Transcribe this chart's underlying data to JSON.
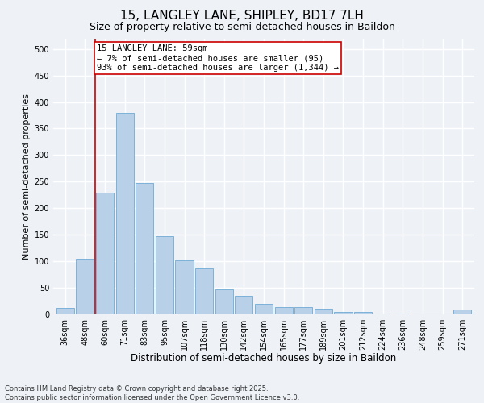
{
  "title": "15, LANGLEY LANE, SHIPLEY, BD17 7LH",
  "subtitle": "Size of property relative to semi-detached houses in Baildon",
  "xlabel": "Distribution of semi-detached houses by size in Baildon",
  "ylabel": "Number of semi-detached properties",
  "categories": [
    "36sqm",
    "48sqm",
    "60sqm",
    "71sqm",
    "83sqm",
    "95sqm",
    "107sqm",
    "118sqm",
    "130sqm",
    "142sqm",
    "154sqm",
    "165sqm",
    "177sqm",
    "189sqm",
    "201sqm",
    "212sqm",
    "224sqm",
    "236sqm",
    "248sqm",
    "259sqm",
    "271sqm"
  ],
  "values": [
    12,
    105,
    230,
    380,
    248,
    148,
    102,
    87,
    47,
    35,
    20,
    14,
    13,
    11,
    5,
    4,
    2,
    1,
    0,
    0,
    9
  ],
  "bar_color": "#b8d0e8",
  "bar_edge_color": "#5a9ecf",
  "property_line_color": "#cc0000",
  "annotation_text": "15 LANGLEY LANE: 59sqm\n← 7% of semi-detached houses are smaller (95)\n93% of semi-detached houses are larger (1,344) →",
  "annotation_box_color": "#cc0000",
  "ylim": [
    0,
    520
  ],
  "yticks": [
    0,
    50,
    100,
    150,
    200,
    250,
    300,
    350,
    400,
    450,
    500
  ],
  "background_color": "#eef2f7",
  "grid_color": "#ffffff",
  "footer_text": "Contains HM Land Registry data © Crown copyright and database right 2025.\nContains public sector information licensed under the Open Government Licence v3.0.",
  "title_fontsize": 11,
  "subtitle_fontsize": 9,
  "xlabel_fontsize": 8.5,
  "ylabel_fontsize": 8,
  "tick_fontsize": 7,
  "annotation_fontsize": 7.5,
  "footer_fontsize": 6
}
